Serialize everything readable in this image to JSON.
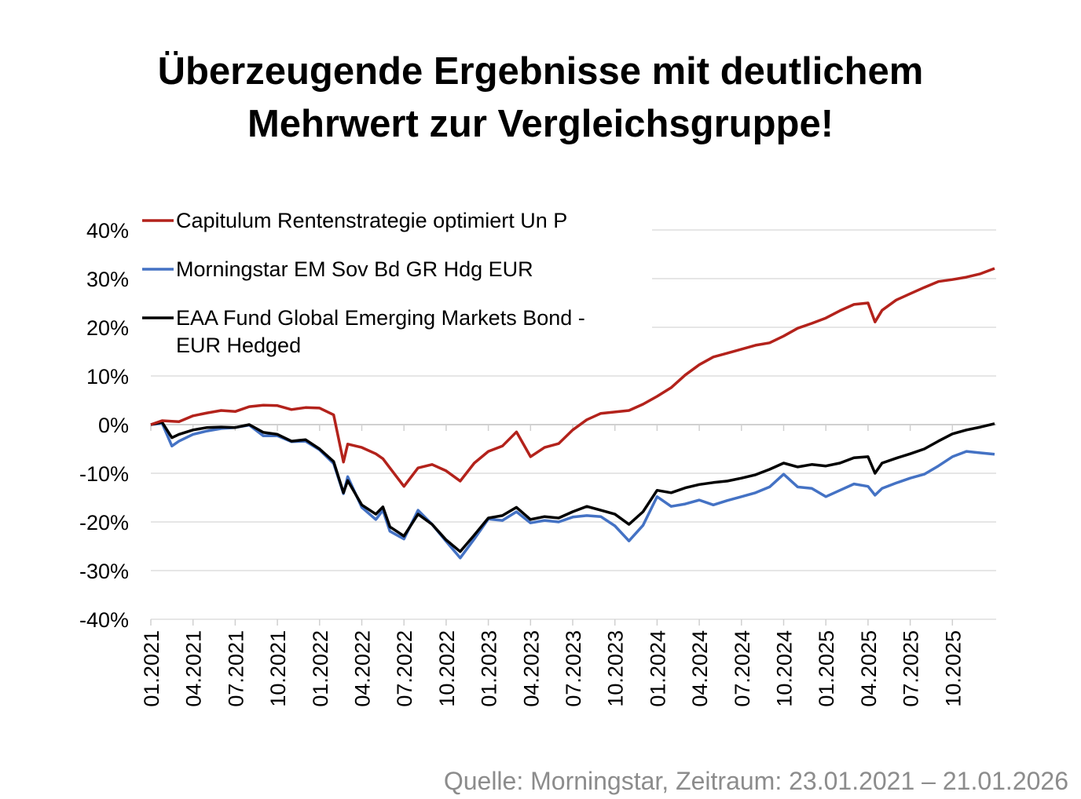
{
  "title": {
    "line1": "Überzeugende Ergebnisse mit deutlichem",
    "line2": "Mehrwert zur Vergleichsgruppe!"
  },
  "source": "Quelle: Morningstar, Zeitraum: 23.01.2021 – 21.01.2026",
  "chart_data": {
    "type": "line",
    "title": "",
    "xlabel": "",
    "ylabel": "",
    "ylim": [
      -40,
      40
    ],
    "yticks": [
      40,
      30,
      20,
      10,
      0,
      -10,
      -20,
      -30,
      -40
    ],
    "ytick_labels": [
      "40%",
      "30%",
      "20%",
      "10%",
      "0%",
      "-10%",
      "-20%",
      "-30%",
      "-40%"
    ],
    "xtick_labels": [
      "01.2021",
      "04.2021",
      "07.2021",
      "10.2021",
      "01.2022",
      "04.2022",
      "07.2022",
      "10.2022",
      "01.2023",
      "04.2023",
      "07.2023",
      "10.2023",
      "01.2024",
      "04.2024",
      "07.2024",
      "10.2024",
      "01.2025",
      "04.2025",
      "07.2025",
      "10.2025"
    ],
    "x_unit": "months since 01.2021",
    "xlim": [
      0,
      60
    ],
    "grid": true,
    "legend_position": "top-left",
    "x": [
      0,
      0.8,
      1.5,
      2,
      3,
      4,
      5,
      6,
      7,
      8,
      9,
      10,
      11,
      12,
      13,
      13.7,
      14,
      15,
      16,
      16.5,
      17,
      18,
      19,
      20,
      21,
      22,
      23,
      24,
      25,
      26,
      27,
      28,
      29,
      30,
      31,
      32,
      33,
      34,
      35,
      36,
      37,
      38,
      39,
      40,
      41,
      42,
      43,
      44,
      45,
      46,
      47,
      48,
      49,
      50,
      51,
      51.5,
      52,
      53,
      54,
      55,
      56,
      57,
      58,
      59,
      60
    ],
    "series": [
      {
        "name": "Capitulum Rentenstrategie optimiert Un P",
        "color": "#b3221b",
        "values": [
          0,
          0.8,
          0.7,
          0.6,
          1.8,
          2.4,
          2.9,
          2.7,
          3.7,
          4.0,
          3.9,
          3.1,
          3.5,
          3.4,
          2.0,
          -7.7,
          -4.0,
          -4.7,
          -6.0,
          -7.0,
          -8.9,
          -12.7,
          -8.9,
          -8.2,
          -9.5,
          -11.6,
          -7.9,
          -5.5,
          -4.4,
          -1.5,
          -6.6,
          -4.7,
          -3.9,
          -1.1,
          1.0,
          2.3,
          2.6,
          2.9,
          4.2,
          5.8,
          7.6,
          10.2,
          12.3,
          13.9,
          14.7,
          15.5,
          16.3,
          16.8,
          18.2,
          19.8,
          20.8,
          21.9,
          23.4,
          24.7,
          25.0,
          21.1,
          23.5,
          25.6,
          26.9,
          28.2,
          29.4,
          29.8,
          30.3,
          31.0,
          32.1
        ]
      },
      {
        "name": "Morningstar EM Sov Bd GR Hdg EUR",
        "color": "#4472c4",
        "values": [
          0,
          0.3,
          -4.4,
          -3.4,
          -2.0,
          -1.3,
          -0.8,
          -0.6,
          -0.1,
          -2.3,
          -2.3,
          -3.5,
          -3.4,
          -5.2,
          -8.0,
          -14.2,
          -10.7,
          -17.0,
          -19.5,
          -17.6,
          -21.9,
          -23.5,
          -17.6,
          -20.5,
          -24.0,
          -27.4,
          -23.5,
          -19.4,
          -19.7,
          -17.9,
          -20.2,
          -19.7,
          -20.0,
          -19.0,
          -18.7,
          -18.9,
          -20.8,
          -23.9,
          -20.7,
          -14.8,
          -16.8,
          -16.3,
          -15.5,
          -16.5,
          -15.6,
          -14.8,
          -14.0,
          -12.8,
          -10.2,
          -12.8,
          -13.1,
          -14.8,
          -13.5,
          -12.2,
          -12.7,
          -14.5,
          -13.1,
          -12.0,
          -11.0,
          -10.2,
          -8.5,
          -6.6,
          -5.5,
          -5.8,
          -6.1
        ]
      },
      {
        "name": "EAA Fund Global Emerging Markets Bond - EUR Hedged",
        "name_line1": "EAA Fund Global Emerging Markets Bond -",
        "name_line2": "EUR Hedged",
        "color": "#000000",
        "values": [
          0,
          0.5,
          -2.7,
          -2.0,
          -1.1,
          -0.6,
          -0.5,
          -0.6,
          0.0,
          -1.6,
          -2.0,
          -3.4,
          -3.1,
          -5.0,
          -7.6,
          -14.0,
          -11.5,
          -16.5,
          -18.4,
          -16.9,
          -21.0,
          -22.9,
          -18.4,
          -20.5,
          -23.7,
          -26.1,
          -22.7,
          -19.2,
          -18.7,
          -17.0,
          -19.5,
          -18.9,
          -19.2,
          -17.9,
          -16.8,
          -17.6,
          -18.4,
          -20.5,
          -17.9,
          -13.5,
          -14.0,
          -13.0,
          -12.3,
          -11.9,
          -11.6,
          -11.0,
          -10.3,
          -9.2,
          -7.9,
          -8.7,
          -8.2,
          -8.5,
          -7.9,
          -6.8,
          -6.6,
          -10.0,
          -7.9,
          -6.9,
          -6.0,
          -5.0,
          -3.4,
          -1.9,
          -1.1,
          -0.5,
          0.2
        ]
      }
    ]
  }
}
